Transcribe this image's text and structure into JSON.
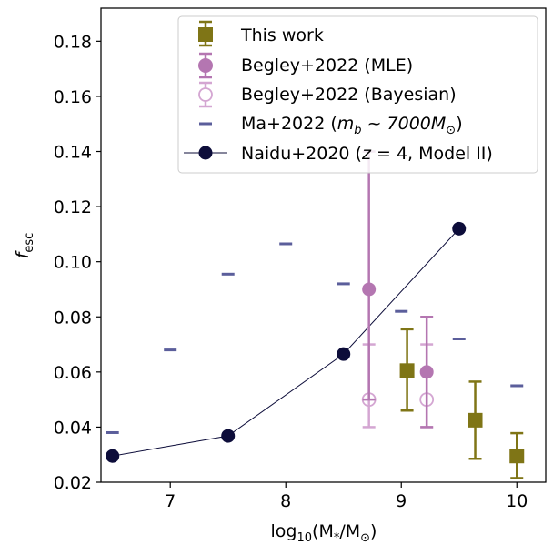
{
  "chart_data": {
    "type": "scatter",
    "title": "",
    "xlabel": "log₁₀(M*/M⊙)",
    "ylabel": "f_esc",
    "xlim": [
      6.4,
      10.25
    ],
    "ylim": [
      0.02,
      0.192
    ],
    "xticks": [
      7,
      8,
      9,
      10
    ],
    "yticks": [
      0.02,
      0.04,
      0.06,
      0.08,
      0.1,
      0.12,
      0.14,
      0.16,
      0.18
    ],
    "ytick_labels": [
      "0.02",
      "0.04",
      "0.06",
      "0.08",
      "0.10",
      "0.12",
      "0.14",
      "0.16",
      "0.18"
    ],
    "legend_position": "top-right",
    "grid": false,
    "series": [
      {
        "name": "This work",
        "marker": "square",
        "color": "#7f7516",
        "points": [
          {
            "x": 9.05,
            "y": 0.0605,
            "ylo": 0.046,
            "yhi": 0.0755
          },
          {
            "x": 9.64,
            "y": 0.0425,
            "ylo": 0.0285,
            "yhi": 0.0565
          },
          {
            "x": 10.0,
            "y": 0.0295,
            "ylo": 0.0215,
            "yhi": 0.0378
          }
        ]
      },
      {
        "name": "Begley+2022 (MLE)",
        "marker": "circle",
        "color": "#b476b1",
        "points": [
          {
            "x": 8.72,
            "y": 0.09,
            "ylo": 0.05,
            "yhi": 0.14
          },
          {
            "x": 9.22,
            "y": 0.06,
            "ylo": 0.04,
            "yhi": 0.08
          }
        ]
      },
      {
        "name": "Begley+2022 (Bayesian)",
        "marker": "open-circle",
        "color": "#d4a6d2",
        "points": [
          {
            "x": 8.72,
            "y": 0.05,
            "ylo": 0.04,
            "yhi": 0.07
          },
          {
            "x": 9.22,
            "y": 0.05,
            "ylo": 0.04,
            "yhi": 0.07
          }
        ]
      },
      {
        "name": "Ma+2022 (m_b ~ 7000M⊙)",
        "marker": "hline",
        "color": "#5b5e9b",
        "points": [
          {
            "x": 6.5,
            "y": 0.038
          },
          {
            "x": 7.0,
            "y": 0.068
          },
          {
            "x": 7.5,
            "y": 0.0955
          },
          {
            "x": 8.0,
            "y": 0.1065
          },
          {
            "x": 8.5,
            "y": 0.092
          },
          {
            "x": 9.0,
            "y": 0.082
          },
          {
            "x": 9.5,
            "y": 0.072
          },
          {
            "x": 10.0,
            "y": 0.055
          }
        ]
      },
      {
        "name": "Naidu+2020 (z = 4, Model II)",
        "marker": "circle-line",
        "color": "#0d0d3a",
        "points": [
          {
            "x": 6.5,
            "y": 0.0295
          },
          {
            "x": 7.5,
            "y": 0.0368
          },
          {
            "x": 8.5,
            "y": 0.0665
          },
          {
            "x": 9.5,
            "y": 0.112
          }
        ]
      }
    ]
  }
}
